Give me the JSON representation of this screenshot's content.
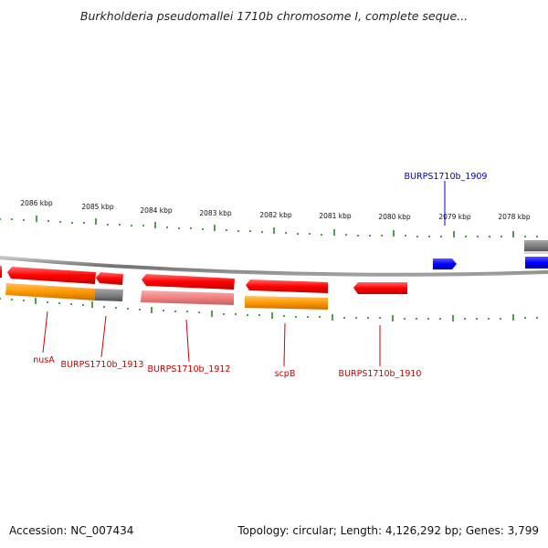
{
  "title": "Burkholderia pseudomallei 1710b chromosome I, complete seque...",
  "footer": {
    "accession": "Accession: NC_007434",
    "info": "Topology: circular; Length: 4,126,292 bp; Genes: 3,799"
  },
  "colors": {
    "forward_cds": "#0000ff",
    "reverse_cds": "#ff0000",
    "reverse_cds_light": "#f08080",
    "orange_track": "#ff9900",
    "gray_track": "#808080",
    "tick": "#1a7a1a",
    "backbone": "#888888"
  },
  "scale_labels": [
    "2086 kbp",
    "2085 kbp",
    "2084 kbp",
    "2083 kbp",
    "2082 kbp",
    "2081 kbp",
    "2080 kbp",
    "2079 kbp",
    "2078 kbp"
  ],
  "gene_labels": {
    "burps1909": "BURPS1710b_1909",
    "nusA": "nusA",
    "burps1913": "BURPS1710b_1913",
    "burps1912": "BURPS1710b_1912",
    "scpB": "scpB",
    "burps1910": "BURPS1710b_1910"
  }
}
